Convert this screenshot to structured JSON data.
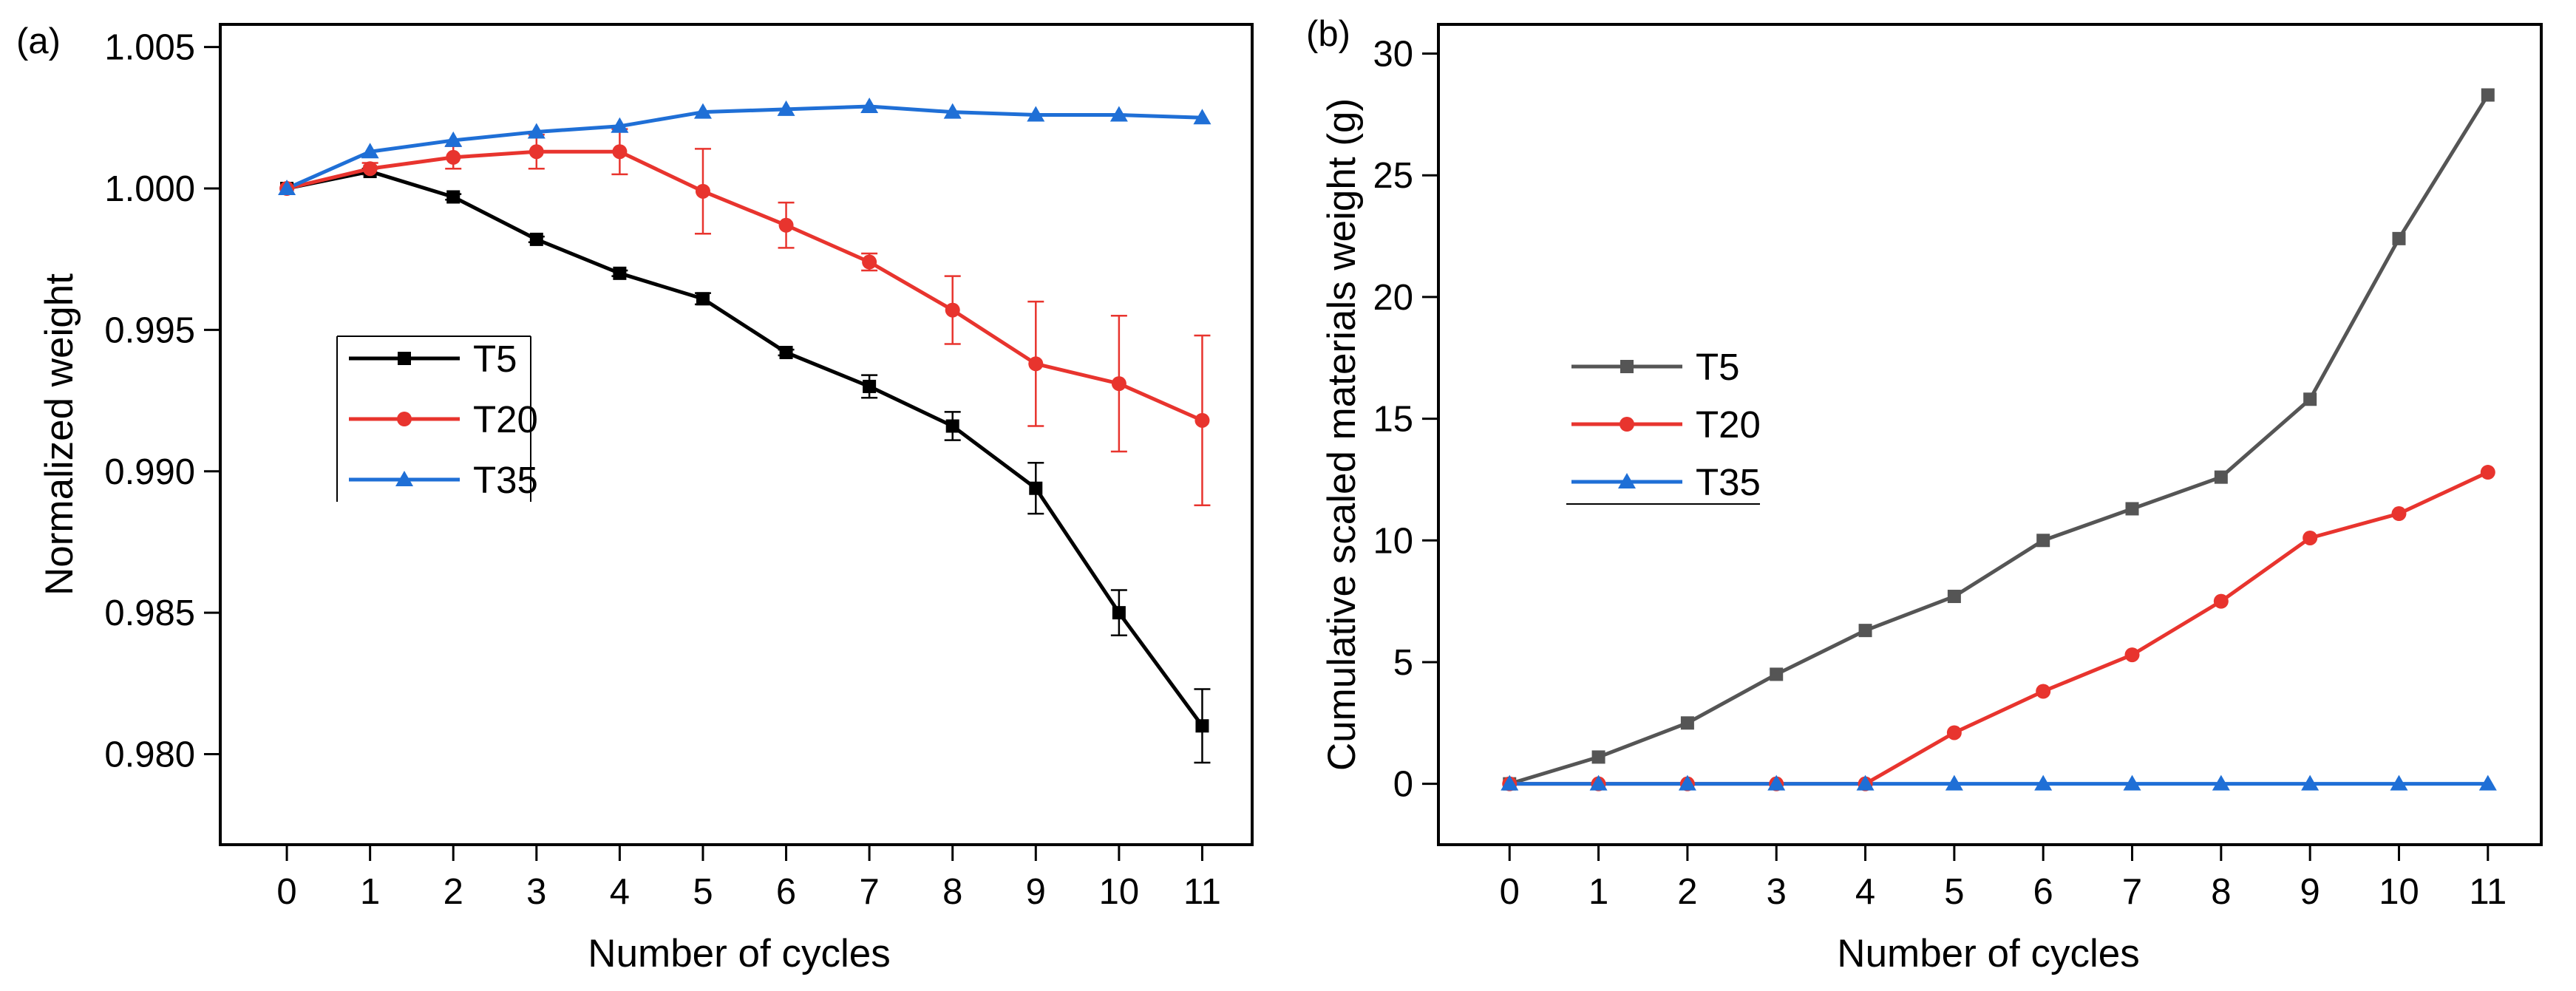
{
  "chart_data": [
    {
      "panel_label": "(a)",
      "type": "line",
      "xlabel": "Number of cycles",
      "ylabel": "Normalized weight",
      "xlim": [
        -0.8,
        11.6
      ],
      "ylim": [
        0.9768,
        1.0058
      ],
      "x_ticks": [
        0,
        1,
        2,
        3,
        4,
        5,
        6,
        7,
        8,
        9,
        10,
        11
      ],
      "x_tick_labels": [
        "0",
        "1",
        "2",
        "3",
        "4",
        "5",
        "6",
        "7",
        "8",
        "9",
        "10",
        "11"
      ],
      "y_ticks": [
        0.98,
        0.985,
        0.99,
        0.995,
        1.0,
        1.005
      ],
      "y_tick_labels": [
        "0.980",
        "0.985",
        "0.990",
        "0.995",
        "1.000",
        "1.005"
      ],
      "legend_position": "left-middle",
      "x": [
        0,
        1,
        2,
        3,
        4,
        5,
        6,
        7,
        8,
        9,
        10,
        11
      ],
      "series": [
        {
          "name": "T5",
          "color": "#000000",
          "marker": "square",
          "values": [
            1.0,
            1.0006,
            0.9997,
            0.9982,
            0.997,
            0.9961,
            0.9942,
            0.993,
            0.9916,
            0.9894,
            0.985,
            0.981
          ],
          "errors": [
            0,
            0.0001,
            0.0001,
            0.0001,
            0.0001,
            0.0002,
            0.0001,
            0.0004,
            0.0005,
            0.0009,
            0.0008,
            0.0013
          ]
        },
        {
          "name": "T20",
          "color": "#e8342e",
          "marker": "circle",
          "values": [
            1.0,
            1.0007,
            1.0011,
            1.0013,
            1.0013,
            0.9999,
            0.9987,
            0.9974,
            0.9957,
            0.9938,
            0.9931,
            0.9918
          ],
          "errors": [
            0,
            0.0002,
            0.0004,
            0.0006,
            0.0008,
            0.0015,
            0.0008,
            0.0003,
            0.0012,
            0.0022,
            0.0024,
            0.003
          ]
        },
        {
          "name": "T35",
          "color": "#1f6fd6",
          "marker": "triangle",
          "values": [
            1.0,
            1.0013,
            1.0017,
            1.002,
            1.0022,
            1.0027,
            1.0028,
            1.0029,
            1.0027,
            1.0026,
            1.0026,
            1.0025
          ],
          "errors": [
            0,
            0,
            0,
            0,
            0,
            0,
            0,
            0,
            0,
            0,
            0,
            0
          ]
        }
      ]
    },
    {
      "panel_label": "(b)",
      "type": "line",
      "xlabel": "Number of cycles",
      "ylabel": "Cumulative scaled materials weight (g)",
      "xlim": [
        -0.8,
        11.6
      ],
      "ylim": [
        -2.5,
        31.2
      ],
      "x_ticks": [
        0,
        1,
        2,
        3,
        4,
        5,
        6,
        7,
        8,
        9,
        10,
        11
      ],
      "x_tick_labels": [
        "0",
        "1",
        "2",
        "3",
        "4",
        "5",
        "6",
        "7",
        "8",
        "9",
        "10",
        "11"
      ],
      "y_ticks": [
        0,
        5,
        10,
        15,
        20,
        25,
        30
      ],
      "y_tick_labels": [
        "0",
        "5",
        "10",
        "15",
        "20",
        "25",
        "30"
      ],
      "legend_position": "left-middle",
      "x": [
        0,
        1,
        2,
        3,
        4,
        5,
        6,
        7,
        8,
        9,
        10,
        11
      ],
      "series": [
        {
          "name": "T5",
          "color": "#555555",
          "marker": "square",
          "values": [
            0,
            1.1,
            2.5,
            4.5,
            6.3,
            7.7,
            10.0,
            11.3,
            12.6,
            15.8,
            22.4,
            28.3
          ]
        },
        {
          "name": "T20",
          "color": "#e8342e",
          "marker": "circle",
          "values": [
            0,
            0,
            0,
            0,
            0,
            2.1,
            3.8,
            5.3,
            7.5,
            10.1,
            11.1,
            12.8
          ]
        },
        {
          "name": "T35",
          "color": "#1f6fd6",
          "marker": "triangle",
          "values": [
            0,
            0,
            0,
            0,
            0,
            0,
            0,
            0,
            0,
            0,
            0,
            0
          ]
        }
      ]
    }
  ]
}
